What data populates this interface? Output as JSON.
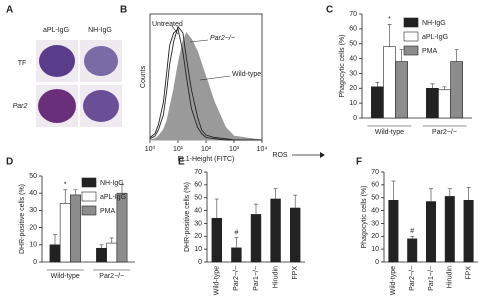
{
  "panel_a": {
    "label": "A",
    "columns": [
      "aPL-IgG",
      "NH-IgG"
    ],
    "rows": [
      "TF",
      "Par2"
    ]
  },
  "chart_data": [
    {
      "type": "line",
      "label": "B",
      "xlog": true,
      "xlabel": "FL1-Height (FITC)",
      "ylabel": "Counts",
      "annotations": [
        "ROS"
      ],
      "x": [
        1,
        1.5,
        2,
        3,
        4,
        5,
        7,
        10,
        15,
        20,
        30,
        50,
        70,
        100,
        200,
        500,
        1000,
        10000
      ],
      "xlim": [
        1,
        10000
      ],
      "xticks": [
        {
          "value": 1,
          "label": "10⁰"
        },
        {
          "value": 10,
          "label": "10¹"
        },
        {
          "value": 100,
          "label": "10²"
        },
        {
          "value": 1000,
          "label": "10³"
        },
        {
          "value": 10000,
          "label": "10⁴"
        }
      ],
      "ylim": [
        0,
        100
      ],
      "series": [
        {
          "name": "Wild-type",
          "color": "#9a9a9a",
          "filled": true,
          "values": [
            0,
            1,
            3,
            8,
            15,
            25,
            40,
            60,
            78,
            85,
            80,
            70,
            60,
            50,
            30,
            10,
            3,
            0
          ]
        },
        {
          "name": "Untreated",
          "color": "#222222",
          "filled": false,
          "values": [
            2,
            5,
            12,
            30,
            55,
            75,
            85,
            88,
            70,
            50,
            25,
            10,
            5,
            2,
            1,
            0,
            0,
            0
          ]
        },
        {
          "name": "Par2−/−",
          "color": "#222222",
          "filled": false,
          "values": [
            1,
            3,
            8,
            20,
            40,
            60,
            78,
            90,
            85,
            65,
            40,
            18,
            8,
            4,
            2,
            1,
            0,
            0
          ]
        }
      ]
    },
    {
      "type": "bar",
      "label": "C",
      "ylabel": "Phagocytic cells (%)",
      "categories": [
        "Wild-type",
        "Par2−/−"
      ],
      "ylim": [
        0,
        70
      ],
      "yticks": [
        0,
        10,
        20,
        30,
        40,
        50,
        60,
        70
      ],
      "annotations": [
        "*"
      ],
      "series": [
        {
          "name": "NH-IgG",
          "color": "#222222",
          "values": [
            21,
            20
          ],
          "errors": [
            3,
            3
          ]
        },
        {
          "name": "aPL-IgG",
          "color": "#ffffff",
          "values": [
            48,
            19
          ],
          "errors": [
            15,
            2
          ]
        },
        {
          "name": "PMA",
          "color": "#8c8c8c",
          "values": [
            38,
            38
          ],
          "errors": [
            8,
            8
          ]
        }
      ]
    },
    {
      "type": "bar",
      "label": "D",
      "ylabel": "DHR-positive cells (%)",
      "categories": [
        "Wild-type",
        "Par2−/−"
      ],
      "ylim": [
        0,
        50
      ],
      "yticks": [
        0,
        10,
        20,
        30,
        40,
        50
      ],
      "annotations": [
        "*"
      ],
      "series": [
        {
          "name": "NH-IgG",
          "color": "#222222",
          "values": [
            10,
            8
          ],
          "errors": [
            6,
            2
          ]
        },
        {
          "name": "aPL-IgG",
          "color": "#ffffff",
          "values": [
            34,
            11
          ],
          "errors": [
            8,
            3
          ]
        },
        {
          "name": "PMA",
          "color": "#8c8c8c",
          "values": [
            39,
            40
          ],
          "errors": [
            3,
            5
          ]
        }
      ]
    },
    {
      "type": "bar",
      "label": "E",
      "ylabel": "DHR-positive cells (%)",
      "categories": [
        "Wild-type",
        "Par2−/−",
        "Par1−/−",
        "Hirudin",
        "FPX"
      ],
      "ylim": [
        0,
        70
      ],
      "yticks": [
        0,
        10,
        20,
        30,
        40,
        50,
        60,
        70
      ],
      "annotations": [
        "#"
      ],
      "series": [
        {
          "color": "#222222",
          "values": [
            34,
            11,
            37,
            49,
            42
          ],
          "errors": [
            15,
            8,
            8,
            8,
            10
          ]
        }
      ]
    },
    {
      "type": "bar",
      "label": "F",
      "ylabel": "Phagocytic cells (%)",
      "categories": [
        "Wild-type",
        "Par2−/−",
        "Par1−/−",
        "Hirudin",
        "FPX"
      ],
      "ylim": [
        0,
        70
      ],
      "yticks": [
        0,
        10,
        20,
        30,
        40,
        50,
        60,
        70
      ],
      "annotations": [
        "#"
      ],
      "series": [
        {
          "color": "#222222",
          "values": [
            48,
            18,
            47,
            51,
            48
          ],
          "errors": [
            15,
            2,
            10,
            6,
            10
          ]
        }
      ]
    }
  ]
}
